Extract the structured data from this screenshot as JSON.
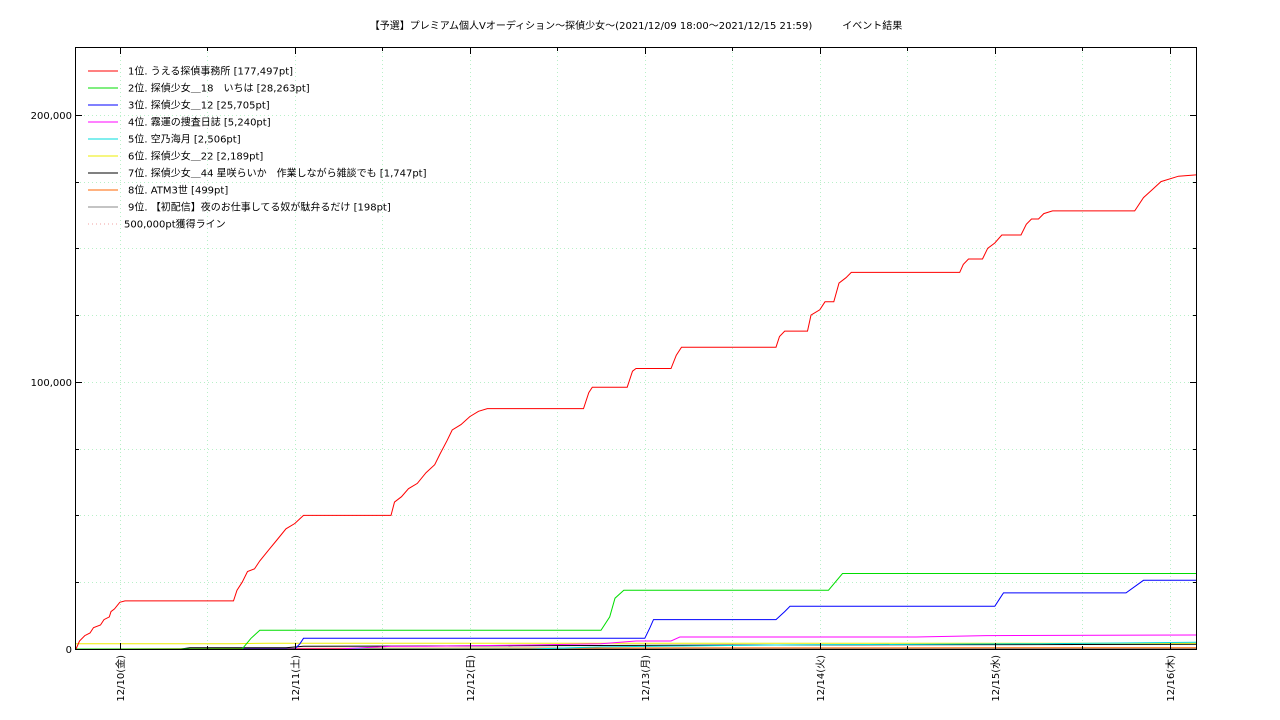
{
  "chart_data": {
    "type": "line",
    "title": "【予選】プレミアム個人Vオーディション〜探偵少女～(2021/12/09 18:00～2021/12/15 21:59)　　　イベント結果",
    "xlim": [
      0,
      6.4
    ],
    "ylim": [
      0,
      200000
    ],
    "y_display_max": 225000,
    "x_ticks": [
      {
        "x": 0.25,
        "label": "12/10(金)"
      },
      {
        "x": 1.25,
        "label": "12/11(土)"
      },
      {
        "x": 2.25,
        "label": "12/12(日)"
      },
      {
        "x": 3.25,
        "label": "12/13(月)"
      },
      {
        "x": 4.25,
        "label": "12/14(火)"
      },
      {
        "x": 5.25,
        "label": "12/15(水)"
      },
      {
        "x": 6.25,
        "label": "12/16(木)"
      }
    ],
    "y_ticks": [
      {
        "y": 0,
        "label": "0"
      },
      {
        "y": 100000,
        "label": "100,000"
      },
      {
        "y": 200000,
        "label": "200,000"
      }
    ],
    "grid": true,
    "legend_position": "top-left",
    "series": [
      {
        "name": "1位. うえる探偵事務所 [177,497pt]",
        "color": "#ff0000",
        "points": [
          [
            0,
            0
          ],
          [
            0.02,
            3000
          ],
          [
            0.05,
            5000
          ],
          [
            0.08,
            6000
          ],
          [
            0.1,
            8000
          ],
          [
            0.14,
            9000
          ],
          [
            0.16,
            11000
          ],
          [
            0.19,
            12000
          ],
          [
            0.2,
            14000
          ],
          [
            0.22,
            15000
          ],
          [
            0.25,
            17500
          ],
          [
            0.28,
            18000
          ],
          [
            0.9,
            18000
          ],
          [
            0.92,
            22000
          ],
          [
            0.95,
            25000
          ],
          [
            0.98,
            29000
          ],
          [
            1.02,
            30000
          ],
          [
            1.05,
            33000
          ],
          [
            1.1,
            37000
          ],
          [
            1.15,
            41000
          ],
          [
            1.2,
            45000
          ],
          [
            1.25,
            47000
          ],
          [
            1.3,
            50000
          ],
          [
            1.8,
            50000
          ],
          [
            1.82,
            55000
          ],
          [
            1.86,
            57000
          ],
          [
            1.9,
            60000
          ],
          [
            1.95,
            62000
          ],
          [
            2.0,
            66000
          ],
          [
            2.05,
            69000
          ],
          [
            2.08,
            73000
          ],
          [
            2.12,
            78000
          ],
          [
            2.15,
            82000
          ],
          [
            2.2,
            84000
          ],
          [
            2.25,
            87000
          ],
          [
            2.3,
            89000
          ],
          [
            2.35,
            90000
          ],
          [
            2.9,
            90000
          ],
          [
            2.93,
            96000
          ],
          [
            2.95,
            98000
          ],
          [
            3.15,
            98000
          ],
          [
            3.18,
            104000
          ],
          [
            3.2,
            105000
          ],
          [
            3.4,
            105000
          ],
          [
            3.43,
            110000
          ],
          [
            3.46,
            113000
          ],
          [
            4.0,
            113000
          ],
          [
            4.02,
            117000
          ],
          [
            4.05,
            119000
          ],
          [
            4.18,
            119000
          ],
          [
            4.2,
            125000
          ],
          [
            4.25,
            127000
          ],
          [
            4.28,
            130000
          ],
          [
            4.33,
            130000
          ],
          [
            4.36,
            137000
          ],
          [
            4.4,
            139000
          ],
          [
            4.43,
            141000
          ],
          [
            5.05,
            141000
          ],
          [
            5.07,
            144000
          ],
          [
            5.1,
            146000
          ],
          [
            5.18,
            146000
          ],
          [
            5.21,
            150000
          ],
          [
            5.25,
            152000
          ],
          [
            5.29,
            155000
          ],
          [
            5.4,
            155000
          ],
          [
            5.43,
            159000
          ],
          [
            5.46,
            161000
          ],
          [
            5.5,
            161000
          ],
          [
            5.53,
            163000
          ],
          [
            5.58,
            164000
          ],
          [
            6.05,
            164000
          ],
          [
            6.1,
            169000
          ],
          [
            6.15,
            172000
          ],
          [
            6.2,
            175000
          ],
          [
            6.3,
            177000
          ],
          [
            6.4,
            177497
          ]
        ]
      },
      {
        "name": "2位. 探偵少女＿18　いちは [28,263pt]",
        "color": "#00dd00",
        "points": [
          [
            0,
            0
          ],
          [
            0.95,
            0
          ],
          [
            1.0,
            4000
          ],
          [
            1.05,
            7000
          ],
          [
            3.0,
            7000
          ],
          [
            3.05,
            12000
          ],
          [
            3.08,
            19000
          ],
          [
            3.13,
            22000
          ],
          [
            4.3,
            22000
          ],
          [
            4.38,
            28263
          ],
          [
            6.4,
            28263
          ]
        ]
      },
      {
        "name": "3位. 探偵少女＿12 [25,705pt]",
        "color": "#0000ff",
        "points": [
          [
            0,
            0
          ],
          [
            1.25,
            0
          ],
          [
            1.28,
            2000
          ],
          [
            1.3,
            4000
          ],
          [
            3.25,
            4000
          ],
          [
            3.28,
            8000
          ],
          [
            3.3,
            11000
          ],
          [
            4.0,
            11000
          ],
          [
            4.05,
            14000
          ],
          [
            4.08,
            16000
          ],
          [
            5.25,
            16000
          ],
          [
            5.28,
            19000
          ],
          [
            5.3,
            21000
          ],
          [
            5.35,
            21000
          ],
          [
            6.0,
            21000
          ],
          [
            6.1,
            25705
          ],
          [
            6.4,
            25705
          ]
        ]
      },
      {
        "name": "4位. 霧運の捜査日誌 [5,240pt]",
        "color": "#ff00ff",
        "points": [
          [
            0,
            0
          ],
          [
            1.5,
            0
          ],
          [
            1.8,
            1000
          ],
          [
            2.0,
            1000
          ],
          [
            2.6,
            1500
          ],
          [
            3.0,
            2000
          ],
          [
            3.2,
            3000
          ],
          [
            3.4,
            3000
          ],
          [
            3.45,
            4500
          ],
          [
            4.8,
            4500
          ],
          [
            5.2,
            5000
          ],
          [
            6.4,
            5240
          ]
        ]
      },
      {
        "name": "5位. 空乃海月 [2,506pt]",
        "color": "#00dddd",
        "points": [
          [
            0,
            0
          ],
          [
            2.6,
            0
          ],
          [
            3.0,
            800
          ],
          [
            3.6,
            1200
          ],
          [
            4.0,
            1500
          ],
          [
            5.5,
            2000
          ],
          [
            6.4,
            2506
          ]
        ]
      },
      {
        "name": "6位. 探偵少女＿22 [2,189pt]",
        "color": "#eeee00",
        "points": [
          [
            0,
            2000
          ],
          [
            0.9,
            2000
          ],
          [
            1.1,
            2189
          ],
          [
            6.4,
            2189
          ]
        ]
      },
      {
        "name": "7位. 探偵少女＿44 星咲らいか　作業しながら雑談でも [1,747pt]",
        "color": "#000000",
        "points": [
          [
            0,
            0
          ],
          [
            0.6,
            0
          ],
          [
            0.65,
            500
          ],
          [
            1.2,
            500
          ],
          [
            1.3,
            1000
          ],
          [
            2.5,
            1200
          ],
          [
            4.0,
            1500
          ],
          [
            6.4,
            1747
          ]
        ]
      },
      {
        "name": "8位. ATM3世 [499pt]",
        "color": "#ff6600",
        "points": [
          [
            0,
            0
          ],
          [
            1.0,
            200
          ],
          [
            2.0,
            300
          ],
          [
            3.5,
            400
          ],
          [
            6.4,
            499
          ]
        ]
      },
      {
        "name": "9位. 【初配信】夜のお仕事してる奴が駄弁るだけ [198pt]",
        "color": "#888888",
        "points": [
          [
            0,
            0
          ],
          [
            2.0,
            100
          ],
          [
            4.0,
            150
          ],
          [
            6.4,
            198
          ]
        ]
      },
      {
        "name": "500,000pt獲得ライン",
        "color": "#f0a0a0",
        "dashed": true,
        "points": []
      }
    ]
  }
}
